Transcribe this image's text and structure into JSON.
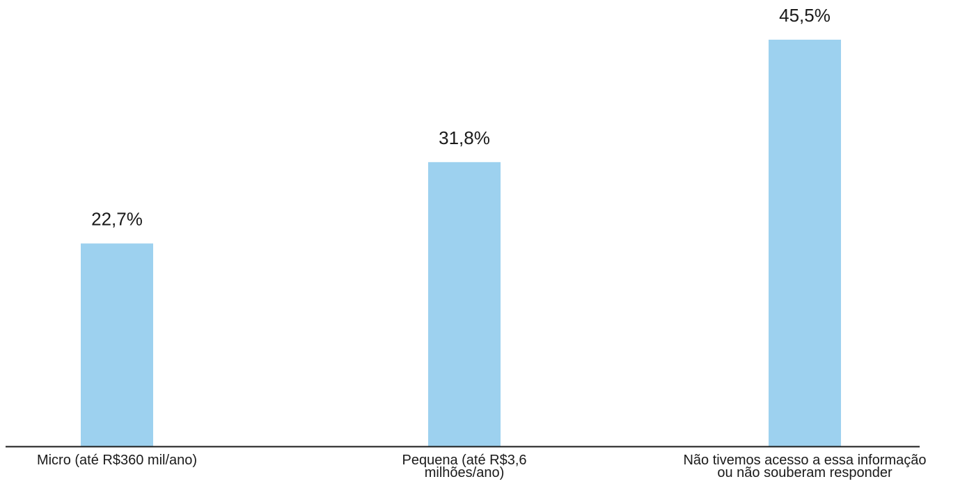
{
  "chart_data": {
    "type": "bar",
    "categories": [
      "Micro (até R$360 mil/ano)",
      "Pequena (até R$3,6\nmilhões/ano)",
      "Não tivemos acesso a essa informação\nou não souberam responder"
    ],
    "values": [
      22.7,
      31.8,
      45.5
    ],
    "data_labels": [
      "22,7%",
      "31,8%",
      "45,5%"
    ],
    "ylim": [
      0,
      45.5
    ],
    "grid": false,
    "legend": "none",
    "bar_color": "#9dd1ef",
    "axis_color": "#1a1a1a"
  }
}
